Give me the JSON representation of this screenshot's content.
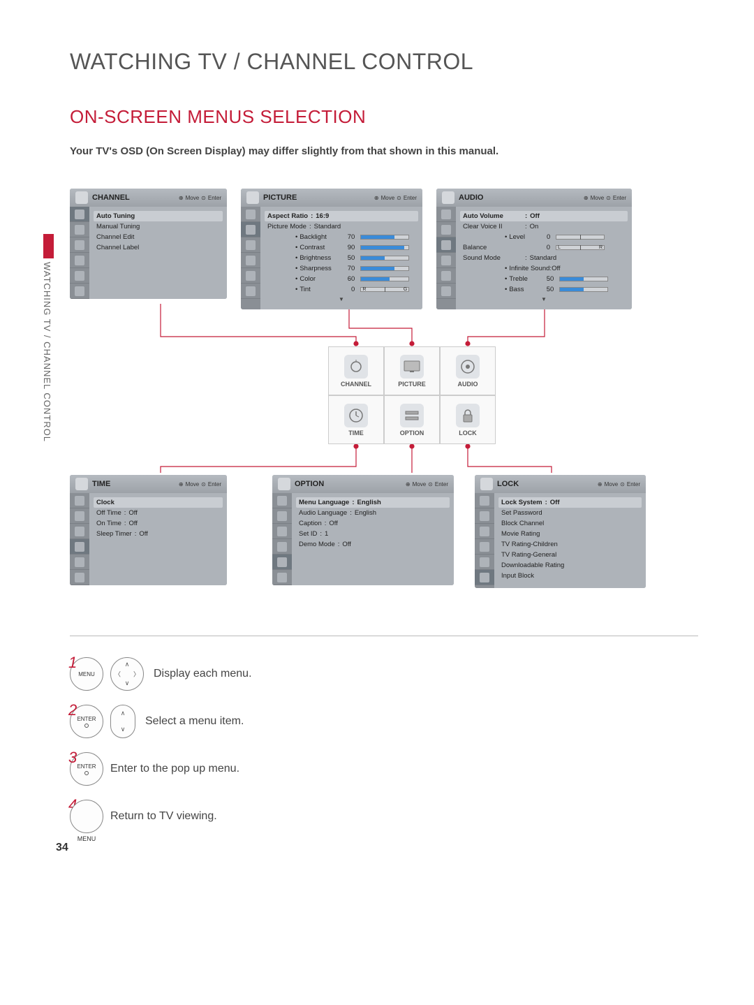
{
  "page_title": "WATCHING TV / CHANNEL CONTROL",
  "section_title": "ON-SCREEN MENUS SELECTION",
  "note": "Your TV's OSD (On Screen Display) may differ slightly from that shown in this manual.",
  "side_tab": "WATCHING TV / CHANNEL CONTROL",
  "page_number": "34",
  "colors": {
    "accent": "#c41c38",
    "panel_bg": "#aeb3b9",
    "bar_fill": "#3a8bd8"
  },
  "hint": {
    "move": "Move",
    "enter": "Enter"
  },
  "grid": {
    "cells": [
      {
        "label": "CHANNEL"
      },
      {
        "label": "PICTURE"
      },
      {
        "label": "AUDIO"
      },
      {
        "label": "TIME"
      },
      {
        "label": "OPTION"
      },
      {
        "label": "LOCK"
      }
    ]
  },
  "panels": {
    "channel": {
      "title": "CHANNEL",
      "rows": [
        {
          "lbl": "Auto Tuning",
          "sel": true
        },
        {
          "lbl": "Manual Tuning"
        },
        {
          "lbl": "Channel Edit"
        },
        {
          "lbl": "Channel Label"
        }
      ]
    },
    "picture": {
      "title": "PICTURE",
      "rows": [
        {
          "lbl": "Aspect Ratio",
          "val": "16:9",
          "sel": true
        },
        {
          "lbl": "Picture Mode",
          "val": "Standard"
        }
      ],
      "sliders": [
        {
          "lbl": "Backlight",
          "num": 70
        },
        {
          "lbl": "Contrast",
          "num": 90
        },
        {
          "lbl": "Brightness",
          "num": 50
        },
        {
          "lbl": "Sharpness",
          "num": 70
        },
        {
          "lbl": "Color",
          "num": 60
        },
        {
          "lbl": "Tint",
          "num": 0,
          "split": true,
          "l": "R",
          "r": "G"
        }
      ]
    },
    "audio": {
      "title": "AUDIO",
      "rows": [
        {
          "lbl": "Auto Volume",
          "val": "Off",
          "sel": true
        },
        {
          "lbl": "Clear Voice II",
          "val": "On"
        }
      ],
      "level": {
        "lbl": "Level",
        "num": 0,
        "split": true
      },
      "balance": {
        "lbl": "Balance",
        "num": 0,
        "split": true,
        "l": "L",
        "r": "R"
      },
      "sound_mode": {
        "lbl": "Sound Mode",
        "val": "Standard"
      },
      "subrows": [
        {
          "lbl": "Infinite Sound:",
          "val": "Off"
        }
      ],
      "sliders": [
        {
          "lbl": "Treble",
          "num": 50
        },
        {
          "lbl": "Bass",
          "num": 50
        }
      ]
    },
    "time": {
      "title": "TIME",
      "rows": [
        {
          "lbl": "Clock",
          "sel": true
        },
        {
          "lbl": "Off Time",
          "val": "Off"
        },
        {
          "lbl": "On Time",
          "val": "Off"
        },
        {
          "lbl": "Sleep Timer",
          "val": "Off"
        }
      ]
    },
    "option": {
      "title": "OPTION",
      "rows": [
        {
          "lbl": "Menu Language",
          "val": "English",
          "sel": true
        },
        {
          "lbl": "Audio Language",
          "val": "English"
        },
        {
          "lbl": "Caption",
          "val": "Off"
        },
        {
          "lbl": "Set ID",
          "val": "1"
        },
        {
          "lbl": "Demo Mode",
          "val": "Off"
        }
      ]
    },
    "lock": {
      "title": "LOCK",
      "rows": [
        {
          "lbl": "Lock System",
          "val": "Off",
          "sel": true
        },
        {
          "lbl": "Set Password"
        },
        {
          "lbl": "Block Channel"
        },
        {
          "lbl": "Movie Rating"
        },
        {
          "lbl": "TV Rating-Children"
        },
        {
          "lbl": "TV Rating-General"
        },
        {
          "lbl": "Downloadable Rating"
        },
        {
          "lbl": "Input Block"
        }
      ]
    }
  },
  "steps": [
    {
      "num": "1",
      "btn1": "MENU",
      "dpad": true,
      "text": "Display each menu."
    },
    {
      "num": "2",
      "btn1": "ENTER",
      "enter_dot": true,
      "updown": true,
      "text": "Select a menu item."
    },
    {
      "num": "3",
      "btn1": "ENTER",
      "enter_dot": true,
      "text": "Enter to the pop up menu."
    },
    {
      "num": "4",
      "btn1": "MENU",
      "blank_circle": true,
      "text": "Return to TV viewing."
    }
  ]
}
